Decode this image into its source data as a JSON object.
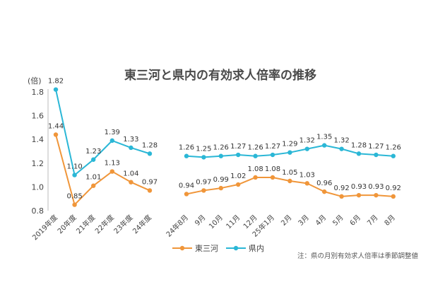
{
  "chart_data": {
    "type": "line",
    "title": "東三河と県内の有効求人倍率の推移",
    "ylabel": "(倍)",
    "ylim": [
      0.8,
      1.82
    ],
    "yticks": [
      "0.8",
      "1.0",
      "1.2",
      "1.4",
      "1.6",
      "1.8"
    ],
    "ytick_values": [
      0.8,
      1.0,
      1.2,
      1.4,
      1.6,
      1.8
    ],
    "groups": [
      {
        "categories": [
          "2019年度",
          "20年度",
          "21年度",
          "22年度",
          "23年度",
          "24年度"
        ],
        "series": [
          {
            "name": "東三河",
            "values": [
              1.44,
              0.85,
              1.01,
              1.13,
              1.04,
              0.97
            ],
            "labels": [
              "1.44",
              "0.85",
              "1.01",
              "1.13",
              "1.04",
              "0.97"
            ]
          },
          {
            "name": "県内",
            "values": [
              1.82,
              1.1,
              1.23,
              1.39,
              1.33,
              1.28
            ],
            "labels": [
              "1.82",
              "1.10",
              "1.23",
              "1.39",
              "1.33",
              "1.28"
            ]
          }
        ]
      },
      {
        "categories": [
          "24年8月",
          "9月",
          "10月",
          "11月",
          "12月",
          "25年1月",
          "2月",
          "3月",
          "4月",
          "5月",
          "6月",
          "7月",
          "8月"
        ],
        "series": [
          {
            "name": "東三河",
            "values": [
              0.94,
              0.97,
              0.99,
              1.02,
              1.08,
              1.08,
              1.05,
              1.03,
              0.96,
              0.92,
              0.93,
              0.93,
              0.92
            ],
            "labels": [
              "0.94",
              "0.97",
              "0.99",
              "1.02",
              "1.08",
              "1.08",
              "1.05",
              "1.03",
              "0.96",
              "0.92",
              "0.93",
              "0.93",
              "0.92"
            ]
          },
          {
            "name": "県内",
            "values": [
              1.26,
              1.25,
              1.26,
              1.27,
              1.26,
              1.27,
              1.29,
              1.32,
              1.35,
              1.32,
              1.28,
              1.27,
              1.26
            ],
            "labels": [
              "1.26",
              "1.25",
              "1.26",
              "1.27",
              "1.26",
              "1.27",
              "1.29",
              "1.32",
              "1.35",
              "1.32",
              "1.28",
              "1.27",
              "1.26"
            ]
          }
        ]
      }
    ],
    "colors": {
      "東三河": "#F0963A",
      "県内": "#2BB7D6"
    },
    "legend": {
      "position": "bottom-center",
      "entries": [
        "東三河",
        "県内"
      ]
    },
    "note": "注：県の月別有効求人倍率は季節調整値",
    "grid": false
  }
}
